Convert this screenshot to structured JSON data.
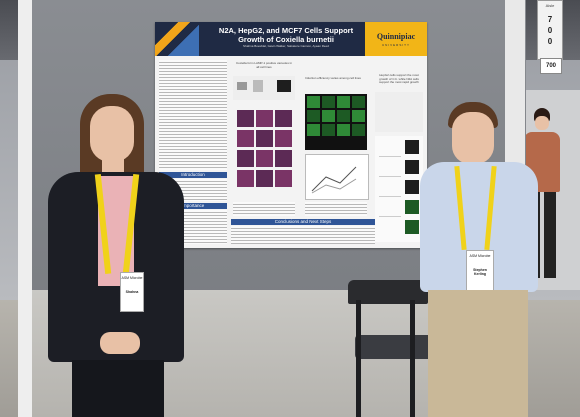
{
  "poster": {
    "title": "N2A, HepG2, and MCF7 Cells Support Growth of Coxiella burnetii",
    "authors": "Shahna Boesblat, Gavin Walker, Salvatore Cannon, Ayaan Reed",
    "university": "Quinnipiac",
    "university_sub": "UNIVERSITY",
    "section_labels": [
      "Introduction",
      "Importance",
      "Conclusions and Next Steps"
    ],
    "col_headers": [
      "Coxiella form LAMP-1 positive vacuoles in all cell lines",
      "Infection efficiency varies among cell lines",
      "HepG2 cells support the most growth of C.b. while N2A cells support the most rapid growth"
    ],
    "grid_labels": [
      "N2A",
      "MCF7",
      "HepG2",
      "Vero"
    ]
  },
  "sign": {
    "number": "700",
    "lines": [
      "7",
      "0",
      "0"
    ],
    "lower": "700",
    "header": "Aisle"
  },
  "badges": {
    "left_name": "Shahna",
    "left_org": "ASM Microbe",
    "right_name": "Stephen Kerling",
    "right_org": "ASM Microbe"
  },
  "colors": {
    "poster_header": "#1f2a44",
    "accent_gold": "#f2b517",
    "blazer": "#1c1e25",
    "shirt_blue": "#c9d6ea"
  }
}
